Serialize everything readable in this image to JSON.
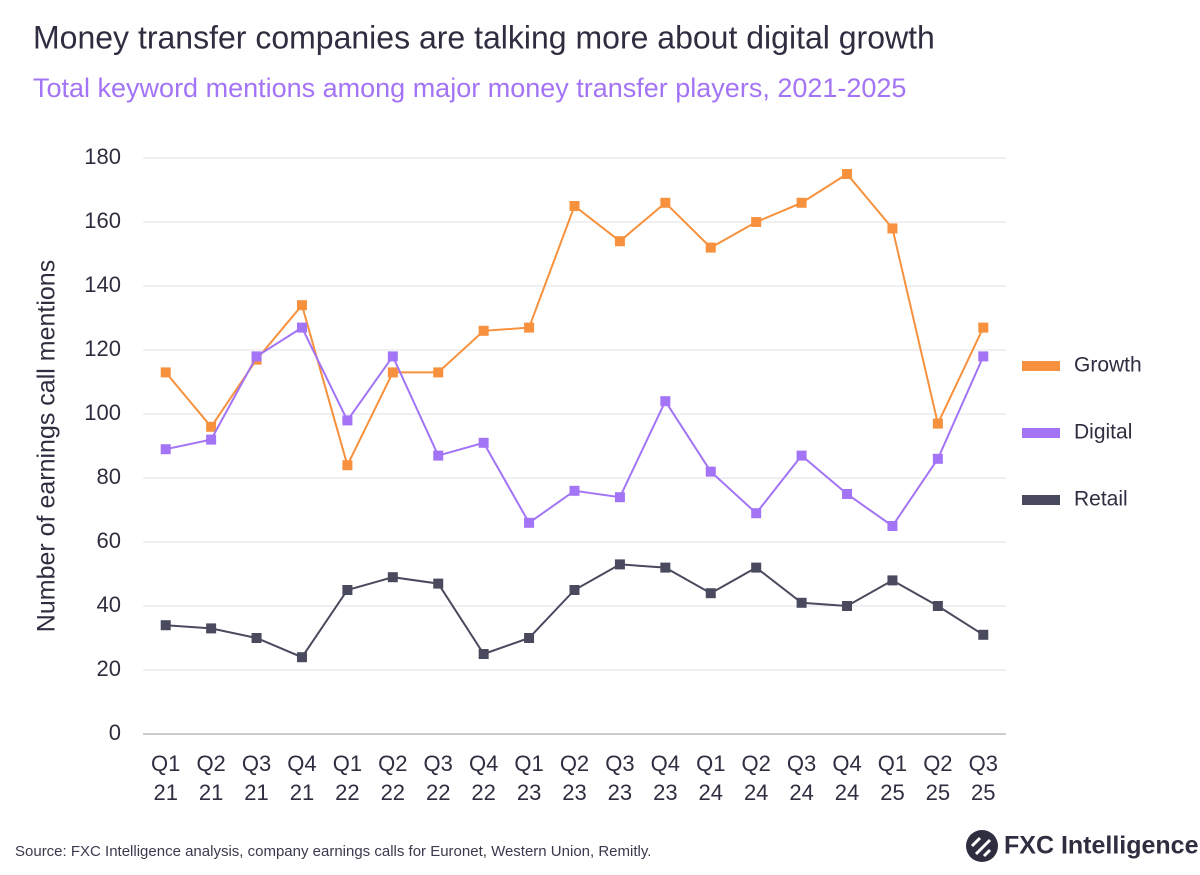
{
  "chart_data": {
    "type": "line",
    "title": "Money transfer companies are talking more about digital growth",
    "subtitle": "Total keyword mentions among major money transfer players, 2021-2025",
    "y_label": "Number of earnings call mentions",
    "categories": [
      [
        "Q1",
        "21"
      ],
      [
        "Q2",
        "21"
      ],
      [
        "Q3",
        "21"
      ],
      [
        "Q4",
        "21"
      ],
      [
        "Q1",
        "22"
      ],
      [
        "Q2",
        "22"
      ],
      [
        "Q3",
        "22"
      ],
      [
        "Q4",
        "22"
      ],
      [
        "Q1",
        "23"
      ],
      [
        "Q2",
        "23"
      ],
      [
        "Q3",
        "23"
      ],
      [
        "Q4",
        "23"
      ],
      [
        "Q1",
        "24"
      ],
      [
        "Q2",
        "24"
      ],
      [
        "Q3",
        "24"
      ],
      [
        "Q4",
        "24"
      ],
      [
        "Q1",
        "25"
      ],
      [
        "Q2",
        "25"
      ],
      [
        "Q3",
        "25"
      ]
    ],
    "series": [
      {
        "name": "Growth",
        "color": "#f7913d",
        "values": [
          113,
          96,
          117,
          134,
          84,
          113,
          113,
          126,
          127,
          165,
          154,
          166,
          152,
          160,
          166,
          175,
          158,
          97,
          127
        ]
      },
      {
        "name": "Digital",
        "color": "#a374f5",
        "values": [
          89,
          92,
          118,
          127,
          98,
          118,
          87,
          91,
          66,
          76,
          74,
          104,
          82,
          69,
          87,
          75,
          65,
          86,
          118
        ]
      },
      {
        "name": "Retail",
        "color": "#4a4a5e",
        "values": [
          34,
          33,
          30,
          24,
          45,
          49,
          47,
          25,
          30,
          45,
          53,
          52,
          44,
          52,
          41,
          40,
          48,
          40,
          31
        ]
      }
    ],
    "ylim": [
      0,
      180
    ],
    "yticks": [
      0,
      20,
      40,
      60,
      80,
      100,
      120,
      140,
      160,
      180
    ],
    "grid": true,
    "legend": "right",
    "source": "Source: FXC Intelligence analysis, company earnings calls for Euronet, Western Union, Remitly.",
    "logo": "FXC Intelligence"
  }
}
